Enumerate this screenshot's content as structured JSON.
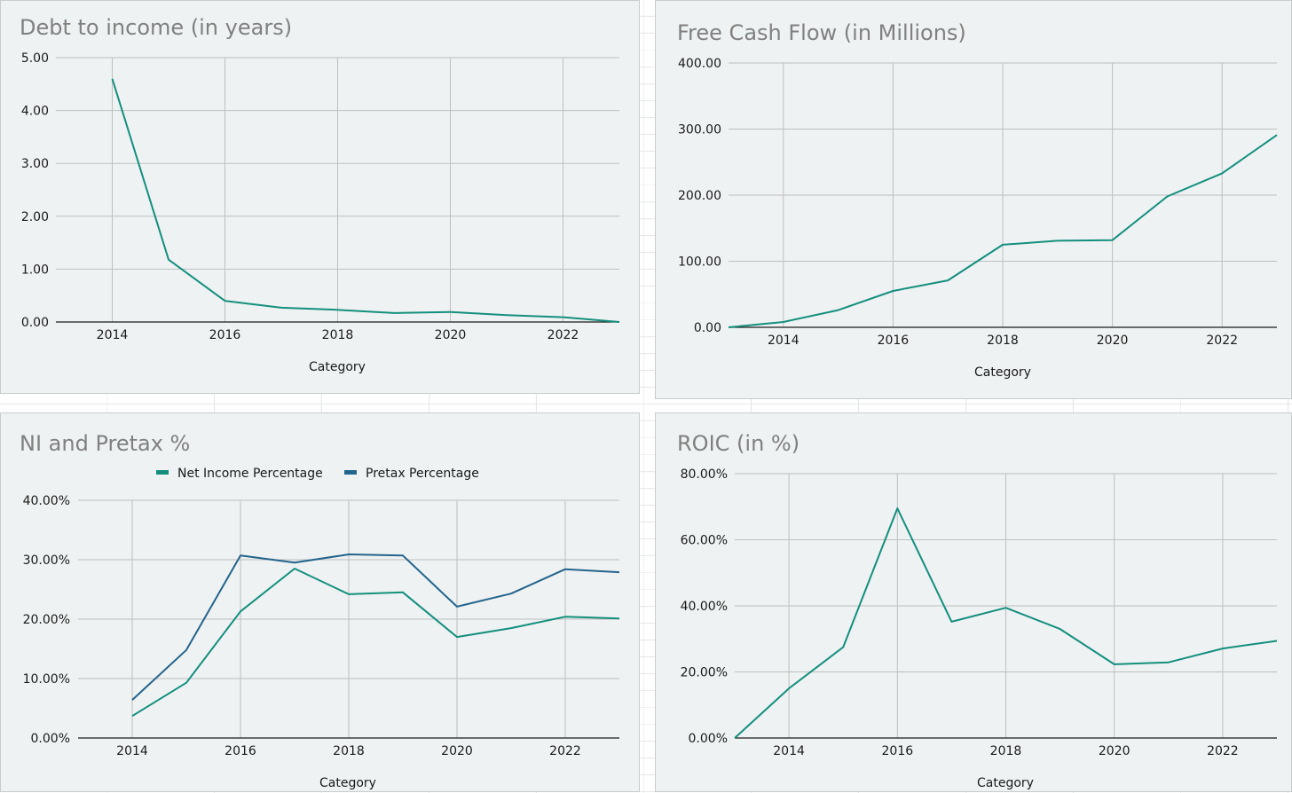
{
  "colors": {
    "teal": "#148f7d",
    "navy": "#23648c",
    "title": "#808080",
    "panel_bg": "#eef2f2"
  },
  "chart_data": [
    {
      "type": "line",
      "title": "Debt to income (in years)",
      "xlabel": "Category",
      "ylabel": "",
      "x": [
        2014,
        2015,
        2016,
        2017,
        2018,
        2019,
        2020,
        2021,
        2022,
        2023
      ],
      "xticks": [
        "2014",
        "2016",
        "2018",
        "2020",
        "2022"
      ],
      "xlim": [
        2013,
        2023
      ],
      "ylim": [
        0,
        5
      ],
      "yticks": [
        "0.00",
        "1.00",
        "2.00",
        "3.00",
        "4.00",
        "5.00"
      ],
      "grid": true,
      "series": [
        {
          "name": "",
          "color": "#148f7d",
          "values": [
            4.6,
            1.18,
            0.4,
            0.27,
            0.23,
            0.17,
            0.19,
            0.13,
            0.09,
            0.0
          ]
        }
      ]
    },
    {
      "type": "line",
      "title": "Free Cash Flow (in Millions)",
      "xlabel": "Category",
      "ylabel": "",
      "x": [
        2013,
        2014,
        2015,
        2016,
        2017,
        2018,
        2019,
        2020,
        2021,
        2022,
        2023
      ],
      "xticks": [
        "2014",
        "2016",
        "2018",
        "2020",
        "2022"
      ],
      "xlim": [
        2013,
        2023
      ],
      "ylim": [
        0,
        400
      ],
      "yticks": [
        "0.00",
        "100.00",
        "200.00",
        "300.00",
        "400.00"
      ],
      "grid": true,
      "series": [
        {
          "name": "",
          "color": "#148f7d",
          "values": [
            0,
            8,
            26,
            55,
            71,
            125,
            131,
            132,
            198,
            233,
            291
          ]
        }
      ]
    },
    {
      "type": "line",
      "title": "NI and Pretax %",
      "xlabel": "Category",
      "ylabel": "",
      "x": [
        2014,
        2015,
        2016,
        2017,
        2018,
        2019,
        2020,
        2021,
        2022,
        2023
      ],
      "xticks": [
        "2014",
        "2016",
        "2018",
        "2020",
        "2022"
      ],
      "xlim": [
        2013,
        2023
      ],
      "ylim": [
        0,
        40
      ],
      "yticks": [
        "0.00%",
        "10.00%",
        "20.00%",
        "30.00%",
        "40.00%"
      ],
      "grid": true,
      "legend": "top",
      "series": [
        {
          "name": "Net Income Percentage",
          "color": "#148f7d",
          "values": [
            3.7,
            9.3,
            21.3,
            28.5,
            24.2,
            24.5,
            17.0,
            18.5,
            20.4,
            20.1
          ]
        },
        {
          "name": "Pretax Percentage",
          "color": "#23648c",
          "values": [
            6.4,
            14.8,
            30.7,
            29.5,
            30.9,
            30.7,
            22.1,
            24.3,
            28.4,
            27.9
          ]
        }
      ]
    },
    {
      "type": "line",
      "title": "ROIC (in %)",
      "xlabel": "Category",
      "ylabel": "",
      "x": [
        2013,
        2014,
        2015,
        2016,
        2017,
        2018,
        2019,
        2020,
        2021,
        2022,
        2023
      ],
      "xticks": [
        "2014",
        "2016",
        "2018",
        "2020",
        "2022"
      ],
      "xlim": [
        2013,
        2023
      ],
      "ylim": [
        0,
        80
      ],
      "yticks": [
        "0.00%",
        "20.00%",
        "40.00%",
        "60.00%",
        "80.00%"
      ],
      "grid": true,
      "series": [
        {
          "name": "",
          "color": "#148f7d",
          "values": [
            0,
            15,
            27.5,
            69.5,
            35.2,
            39.4,
            33.0,
            22.3,
            22.9,
            27.1,
            29.4
          ]
        }
      ]
    }
  ]
}
